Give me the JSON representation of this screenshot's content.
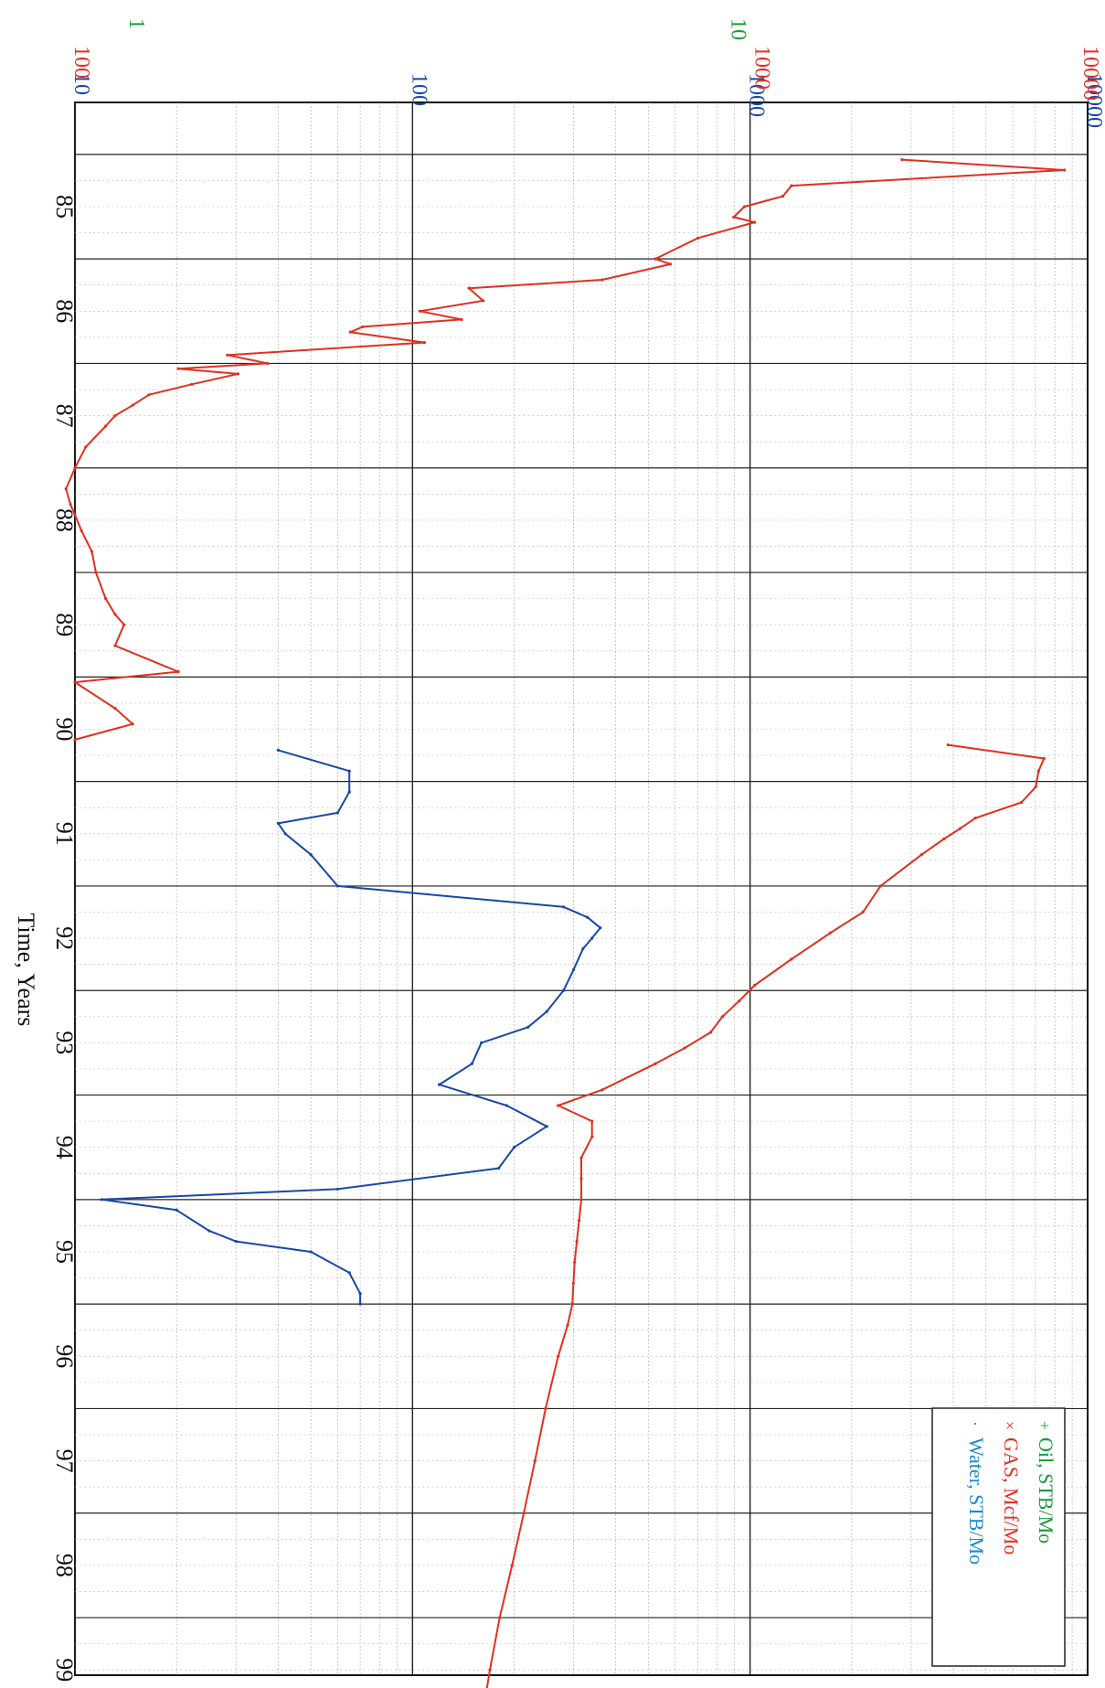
{
  "chart_data": {
    "type": "line",
    "orientation": "rotated-90-clockwise",
    "x_axis": {
      "label": "Time, Years",
      "ticks": [
        "85",
        "86",
        "87",
        "88",
        "89",
        "90",
        "91",
        "92",
        "93",
        "94",
        "95",
        "96",
        "97",
        "98",
        "99"
      ],
      "range": [
        84.5,
        99.7
      ]
    },
    "y_axis": {
      "scale": "log",
      "grid": true,
      "scales": [
        {
          "color": "#1a47a8",
          "labels": [
            "10",
            "100",
            "1000",
            "10000"
          ],
          "range": [
            10,
            10000
          ]
        },
        {
          "color": "#e03020",
          "labels": [
            "100",
            "1000",
            "10000"
          ],
          "range": [
            100,
            10000
          ]
        },
        {
          "color": "#1a9a3a",
          "labels": [
            "1",
            "10",
            "100"
          ],
          "range": [
            1,
            100
          ]
        }
      ]
    },
    "legend": {
      "placement": "top-right",
      "entries": [
        {
          "label": "Oil, STB/Mo",
          "marker": "+",
          "color": "#1a9a3a"
        },
        {
          "label": "GAS, Mcf/Mo",
          "marker": "×",
          "color": "#e03020"
        },
        {
          "label": "Water, STB/Mo",
          "marker": "·",
          "color": "#1a8ad0"
        }
      ]
    },
    "series": [
      {
        "name": "GAS, Mcf/Mo",
        "color": "#e03020",
        "segments": [
          [
            [
              84.55,
              4300
            ],
            [
              84.65,
              9000
            ],
            [
              84.8,
              2600
            ],
            [
              84.9,
              2500
            ],
            [
              85.0,
              2100
            ],
            [
              85.1,
              2000
            ],
            [
              85.15,
              2200
            ],
            [
              85.3,
              1700
            ],
            [
              85.5,
              1400
            ],
            [
              85.55,
              1500
            ],
            [
              85.7,
              1100
            ],
            [
              85.78,
              600
            ],
            [
              85.9,
              640
            ],
            [
              86.0,
              480
            ],
            [
              86.08,
              580
            ],
            [
              86.15,
              370
            ],
            [
              86.2,
              350
            ],
            [
              86.3,
              490
            ],
            [
              86.42,
              200
            ],
            [
              86.5,
              240
            ],
            [
              86.55,
              160
            ],
            [
              86.6,
              210
            ],
            [
              86.7,
              170
            ],
            [
              86.8,
              140
            ],
            [
              86.9,
              130
            ],
            [
              87.0,
              120
            ],
            [
              87.1,
              115
            ],
            [
              87.3,
              105
            ],
            [
              87.5,
              100
            ],
            [
              87.7,
              96
            ],
            [
              87.85,
              98
            ],
            [
              87.95,
              100
            ],
            [
              88.1,
              103
            ],
            [
              88.3,
              108
            ],
            [
              88.5,
              110
            ],
            [
              88.75,
              115
            ],
            [
              88.9,
              120
            ],
            [
              89.0,
              125
            ],
            [
              89.2,
              120
            ],
            [
              89.45,
              160
            ],
            [
              89.55,
              100
            ],
            [
              89.8,
              120
            ],
            [
              89.95,
              130
            ],
            [
              90.1,
              100
            ]
          ]
        ]
      },
      {
        "name": "GAS, Mcf/Mo",
        "color": "#e03020",
        "segments": [
          [
            [
              90.15,
              5300
            ],
            [
              90.28,
              8200
            ],
            [
              90.4,
              8000
            ],
            [
              90.55,
              7900
            ],
            [
              90.7,
              7400
            ],
            [
              90.85,
              6000
            ],
            [
              90.95,
              5600
            ],
            [
              91.05,
              5200
            ],
            [
              91.2,
              4700
            ],
            [
              91.5,
              3900
            ],
            [
              91.75,
              3600
            ],
            [
              91.95,
              3100
            ],
            [
              92.2,
              2600
            ],
            [
              92.45,
              2200
            ],
            [
              92.6,
              2050
            ],
            [
              92.75,
              1900
            ],
            [
              92.9,
              1800
            ],
            [
              93.05,
              1600
            ],
            [
              93.2,
              1400
            ],
            [
              93.45,
              1100
            ],
            [
              93.6,
              900
            ],
            [
              93.75,
              1050
            ],
            [
              93.9,
              1050
            ],
            [
              94.1,
              1000
            ],
            [
              94.3,
              1000
            ],
            [
              94.5,
              1000
            ],
            [
              94.7,
              990
            ],
            [
              94.9,
              980
            ],
            [
              95.1,
              970
            ],
            [
              95.3,
              965
            ],
            [
              95.5,
              960
            ],
            [
              95.7,
              940
            ],
            [
              96.0,
              900
            ],
            [
              96.5,
              850
            ],
            [
              97.0,
              810
            ],
            [
              97.5,
              770
            ],
            [
              98.0,
              730
            ],
            [
              98.5,
              690
            ],
            [
              99.0,
              660
            ],
            [
              99.6,
              630
            ]
          ]
        ]
      },
      {
        "name": "Water, STB/Mo",
        "color": "#1a47a8",
        "segments": [
          [
            [
              90.2,
              40
            ],
            [
              90.4,
              65
            ],
            [
              90.6,
              65
            ],
            [
              90.8,
              60
            ],
            [
              90.9,
              40
            ],
            [
              91.0,
              42
            ],
            [
              91.2,
              50
            ],
            [
              91.5,
              60
            ],
            [
              91.7,
              280
            ],
            [
              91.8,
              330
            ],
            [
              91.9,
              360
            ],
            [
              92.0,
              340
            ],
            [
              92.1,
              320
            ],
            [
              92.3,
              300
            ],
            [
              92.5,
              280
            ],
            [
              92.7,
              250
            ],
            [
              92.85,
              220
            ],
            [
              93.0,
              160
            ],
            [
              93.2,
              150
            ],
            [
              93.4,
              120
            ],
            [
              93.6,
              190
            ],
            [
              93.8,
              250
            ],
            [
              94.0,
              200
            ],
            [
              94.2,
              180
            ],
            [
              94.4,
              60
            ],
            [
              94.5,
              12
            ],
            [
              94.6,
              20
            ],
            [
              94.8,
              25
            ],
            [
              94.9,
              30
            ],
            [
              95.0,
              50
            ],
            [
              95.2,
              65
            ],
            [
              95.4,
              70
            ],
            [
              95.5,
              70
            ]
          ]
        ]
      }
    ]
  }
}
